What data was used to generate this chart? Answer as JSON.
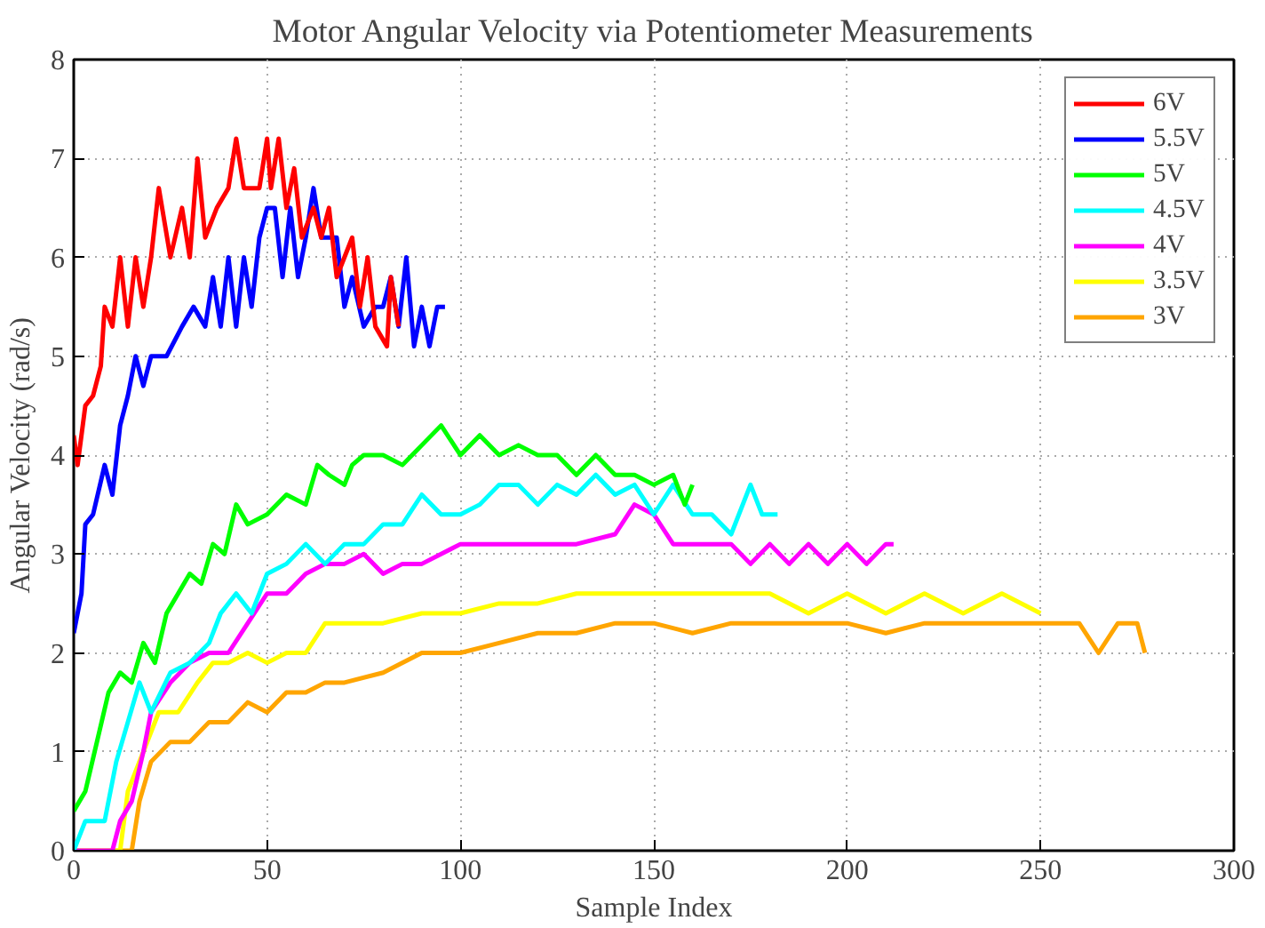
{
  "chart_data": {
    "type": "line",
    "title": "Motor Angular Velocity via Potentiometer Measurements",
    "xlabel": "Sample Index",
    "ylabel": "Angular Velocity (rad/s)",
    "xlim": [
      0,
      300
    ],
    "xticks": [
      0,
      50,
      100,
      150,
      200,
      250,
      300
    ],
    "ylim": [
      0,
      8
    ],
    "yticks": [
      0,
      1,
      2,
      3,
      4,
      5,
      6,
      7,
      8
    ],
    "grid": true,
    "legend": "top right",
    "marker": "none",
    "line_style": "solid",
    "series": [
      {
        "name": "6V",
        "color": "#ff0000",
        "x": [
          0,
          1,
          3,
          5,
          7,
          8,
          10,
          12,
          14,
          16,
          18,
          20,
          22,
          25,
          28,
          30,
          32,
          34,
          37,
          40,
          42,
          44,
          48,
          50,
          51,
          53,
          55,
          57,
          59,
          62,
          64,
          66,
          68,
          72,
          74,
          76,
          78,
          81,
          82,
          84
        ],
        "values": [
          4.2,
          3.9,
          4.5,
          4.6,
          4.9,
          5.5,
          5.3,
          6.0,
          5.3,
          6.0,
          5.5,
          6.0,
          6.7,
          6.0,
          6.5,
          6.0,
          7.0,
          6.2,
          6.5,
          6.7,
          7.2,
          6.7,
          6.7,
          7.2,
          6.7,
          7.2,
          6.5,
          6.9,
          6.2,
          6.5,
          6.2,
          6.5,
          5.8,
          6.2,
          5.5,
          6.0,
          5.3,
          5.1,
          5.8,
          5.3
        ]
      },
      {
        "name": "5.5V",
        "color": "#0000ff",
        "x": [
          0,
          2,
          3,
          5,
          8,
          10,
          12,
          14,
          16,
          18,
          20,
          24,
          28,
          31,
          34,
          36,
          38,
          40,
          42,
          44,
          46,
          48,
          50,
          52,
          54,
          56,
          58,
          60,
          62,
          64,
          68,
          70,
          72,
          75,
          78,
          80,
          82,
          84,
          86,
          88,
          90,
          92,
          94,
          96
        ],
        "values": [
          2.2,
          2.6,
          3.3,
          3.4,
          3.9,
          3.6,
          4.3,
          4.6,
          5.0,
          4.7,
          5.0,
          5.0,
          5.3,
          5.5,
          5.3,
          5.8,
          5.3,
          6.0,
          5.3,
          6.0,
          5.5,
          6.2,
          6.5,
          6.5,
          5.8,
          6.5,
          5.8,
          6.2,
          6.7,
          6.2,
          6.2,
          5.5,
          5.8,
          5.3,
          5.5,
          5.5,
          5.8,
          5.3,
          6.0,
          5.1,
          5.5,
          5.1,
          5.5,
          5.5
        ]
      },
      {
        "name": "5V",
        "color": "#00ff00",
        "x": [
          0,
          3,
          6,
          9,
          12,
          15,
          18,
          21,
          24,
          27,
          30,
          33,
          36,
          39,
          42,
          45,
          50,
          55,
          60,
          63,
          66,
          70,
          72,
          75,
          80,
          85,
          90,
          95,
          100,
          105,
          110,
          115,
          120,
          125,
          130,
          135,
          140,
          145,
          150,
          155,
          158,
          160
        ],
        "values": [
          0.4,
          0.6,
          1.1,
          1.6,
          1.8,
          1.7,
          2.1,
          1.9,
          2.4,
          2.6,
          2.8,
          2.7,
          3.1,
          3.0,
          3.5,
          3.3,
          3.4,
          3.6,
          3.5,
          3.9,
          3.8,
          3.7,
          3.9,
          4.0,
          4.0,
          3.9,
          4.1,
          4.3,
          4.0,
          4.2,
          4.0,
          4.1,
          4.0,
          4.0,
          3.8,
          4.0,
          3.8,
          3.8,
          3.7,
          3.8,
          3.5,
          3.7
        ]
      },
      {
        "name": "4.5V",
        "color": "#00ffff",
        "x": [
          0,
          3,
          8,
          11,
          14,
          17,
          20,
          25,
          30,
          35,
          38,
          42,
          46,
          50,
          55,
          60,
          65,
          70,
          75,
          80,
          85,
          90,
          95,
          100,
          105,
          110,
          115,
          120,
          125,
          130,
          135,
          140,
          145,
          150,
          155,
          160,
          165,
          170,
          175,
          178,
          182
        ],
        "values": [
          0,
          0.3,
          0.3,
          0.9,
          1.3,
          1.7,
          1.4,
          1.8,
          1.9,
          2.1,
          2.4,
          2.6,
          2.4,
          2.8,
          2.9,
          3.1,
          2.9,
          3.1,
          3.1,
          3.3,
          3.3,
          3.6,
          3.4,
          3.4,
          3.5,
          3.7,
          3.7,
          3.5,
          3.7,
          3.6,
          3.8,
          3.6,
          3.7,
          3.4,
          3.7,
          3.4,
          3.4,
          3.2,
          3.7,
          3.4,
          3.4
        ]
      },
      {
        "name": "4V",
        "color": "#ff00ff",
        "x": [
          0,
          10,
          12,
          15,
          18,
          20,
          25,
          30,
          35,
          40,
          45,
          50,
          55,
          60,
          65,
          70,
          75,
          80,
          85,
          90,
          100,
          110,
          120,
          130,
          140,
          145,
          150,
          155,
          160,
          170,
          175,
          180,
          185,
          190,
          195,
          200,
          205,
          210,
          212
        ],
        "values": [
          0,
          0,
          0.3,
          0.5,
          1.0,
          1.4,
          1.7,
          1.9,
          2.0,
          2.0,
          2.3,
          2.6,
          2.6,
          2.8,
          2.9,
          2.9,
          3.0,
          2.8,
          2.9,
          2.9,
          3.1,
          3.1,
          3.1,
          3.1,
          3.2,
          3.5,
          3.4,
          3.1,
          3.1,
          3.1,
          2.9,
          3.1,
          2.9,
          3.1,
          2.9,
          3.1,
          2.9,
          3.1,
          3.1
        ]
      },
      {
        "name": "3.5V",
        "color": "#ffff00",
        "x": [
          0,
          12,
          14,
          18,
          22,
          27,
          32,
          36,
          40,
          45,
          50,
          55,
          60,
          65,
          70,
          80,
          90,
          100,
          110,
          120,
          130,
          140,
          150,
          160,
          170,
          180,
          190,
          200,
          210,
          220,
          230,
          240,
          250
        ],
        "values": [
          0,
          0,
          0.6,
          1.0,
          1.4,
          1.4,
          1.7,
          1.9,
          1.9,
          2.0,
          1.9,
          2.0,
          2.0,
          2.3,
          2.3,
          2.3,
          2.4,
          2.4,
          2.5,
          2.5,
          2.6,
          2.6,
          2.6,
          2.6,
          2.6,
          2.6,
          2.4,
          2.6,
          2.4,
          2.6,
          2.4,
          2.6,
          2.4
        ]
      },
      {
        "name": "3V",
        "color": "#ffa500",
        "x": [
          0,
          15,
          17,
          20,
          25,
          30,
          35,
          40,
          45,
          50,
          55,
          60,
          65,
          70,
          80,
          90,
          100,
          110,
          120,
          130,
          140,
          150,
          160,
          170,
          180,
          190,
          200,
          210,
          220,
          230,
          240,
          250,
          260,
          265,
          270,
          275,
          277
        ],
        "values": [
          0,
          0,
          0.5,
          0.9,
          1.1,
          1.1,
          1.3,
          1.3,
          1.5,
          1.4,
          1.6,
          1.6,
          1.7,
          1.7,
          1.8,
          2.0,
          2.0,
          2.1,
          2.2,
          2.2,
          2.3,
          2.3,
          2.2,
          2.3,
          2.3,
          2.3,
          2.3,
          2.2,
          2.3,
          2.3,
          2.3,
          2.3,
          2.3,
          2.0,
          2.3,
          2.3,
          2.0
        ]
      }
    ]
  }
}
